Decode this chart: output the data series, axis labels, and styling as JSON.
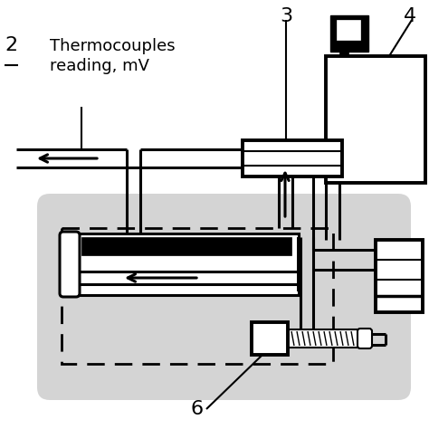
{
  "bg_color": "#ffffff",
  "gray_shade": "#d4d4d4",
  "line_color": "#000000",
  "label_2": "2",
  "label_3": "3",
  "label_4": "4",
  "label_6": "6",
  "text_thermocouples": "Thermocouples\nreading, mV",
  "figsize": [
    4.74,
    4.74
  ],
  "dpi": 100
}
